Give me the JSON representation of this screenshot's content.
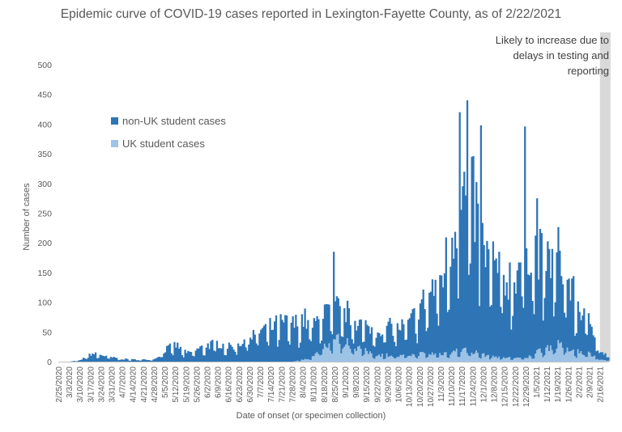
{
  "chart_data": {
    "type": "bar",
    "stacked": true,
    "title": "Epidemic curve of COVID-19 cases reported in Lexington-Fayette County, as of 2/22/2021",
    "xlabel": "Date of onset (or specimen collection)",
    "ylabel": "Number of cases",
    "ylim": [
      0,
      500
    ],
    "yticks": [
      0,
      50,
      100,
      150,
      200,
      250,
      300,
      350,
      400,
      450,
      500
    ],
    "grid": false,
    "legend_position": "left",
    "x_start": "2/25/2020",
    "x_end": "2/22/2021",
    "x_tick_labels": [
      "2/25/2020",
      "3/3/2020",
      "3/10/2020",
      "3/17/2020",
      "3/24/2020",
      "3/31/2020",
      "4/7/2020",
      "4/14/2020",
      "4/21/2020",
      "4/28/2020",
      "5/5/2020",
      "5/12/2020",
      "5/19/2020",
      "5/26/2020",
      "6/2/2020",
      "6/9/2020",
      "6/16/2020",
      "6/23/2020",
      "6/30/2020",
      "7/7/2020",
      "7/14/2020",
      "7/21/2020",
      "7/28/2020",
      "8/4/2020",
      "8/11/2020",
      "8/18/2020",
      "8/25/2020",
      "9/1/2020",
      "9/8/2020",
      "9/15/2020",
      "9/22/2020",
      "9/29/2020",
      "10/6/2020",
      "10/13/2020",
      "10/20/2020",
      "10/27/2020",
      "11/3/2020",
      "11/10/2020",
      "11/17/2020",
      "11/24/2020",
      "12/1/2020",
      "12/8/2020",
      "12/15/2020",
      "12/22/2020",
      "12/29/2020",
      "1/5/2021",
      "1/12/2021",
      "1/19/2021",
      "1/26/2021",
      "2/2/2021",
      "2/9/2021",
      "2/16/2021"
    ],
    "weekly_series": [
      {
        "name": "non-UK student cases",
        "color": "#2e75b6",
        "weekly_avg": [
          0,
          0,
          2,
          12,
          10,
          6,
          4,
          3,
          3,
          4,
          18,
          25,
          12,
          18,
          25,
          28,
          22,
          28,
          38,
          48,
          52,
          58,
          55,
          62,
          45,
          55,
          48,
          45,
          42,
          35,
          38,
          45,
          42,
          50,
          70,
          95,
          115,
          175,
          230,
          230,
          155,
          140,
          115,
          130,
          175,
          150,
          130,
          135,
          100,
          65,
          50,
          20
        ]
      },
      {
        "name": "UK student cases",
        "color": "#9dc3e6",
        "weekly_avg": [
          0,
          0,
          0,
          0,
          0,
          0,
          0,
          0,
          0,
          0,
          0,
          0,
          0,
          0,
          0,
          0,
          0,
          0,
          0,
          0,
          0,
          0,
          0,
          3,
          8,
          25,
          35,
          30,
          22,
          15,
          10,
          10,
          8,
          10,
          12,
          12,
          12,
          15,
          18,
          15,
          10,
          8,
          6,
          6,
          5,
          15,
          22,
          25,
          20,
          15,
          12,
          5
        ]
      }
    ],
    "annotations": [
      {
        "text": "Likely to increase due to delays in testing and reporting",
        "x_from": "2/16/2021",
        "x_to": "2/22/2021",
        "color": "#d9d9d9"
      }
    ],
    "peaks": [
      {
        "x": "8/24/2020",
        "y": 185
      },
      {
        "x": "11/15/2020",
        "y": 420
      },
      {
        "x": "11/20/2020",
        "y": 440
      },
      {
        "x": "11/29/2020",
        "y": 398
      },
      {
        "x": "12/28/2020",
        "y": 396
      },
      {
        "x": "1/5/2021",
        "y": 275
      }
    ]
  },
  "colors": {
    "non_uk": "#2e75b6",
    "uk": "#9dc3e6",
    "shade": "#d9d9d9",
    "axis": "#bfbfbf",
    "text": "#595959"
  }
}
